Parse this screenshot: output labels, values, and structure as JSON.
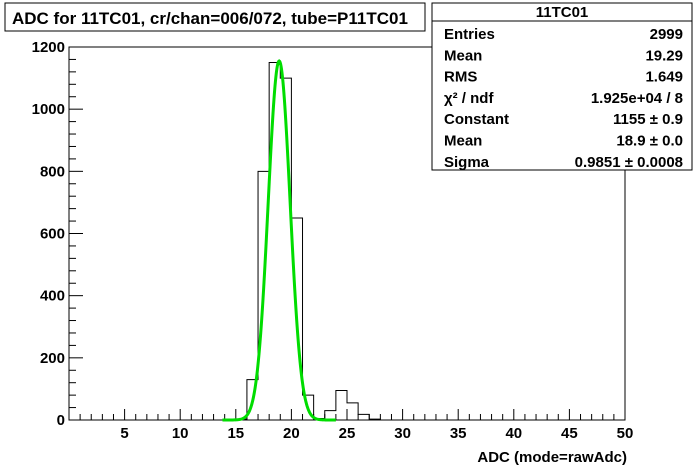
{
  "chart_data": {
    "type": "histogram",
    "title": "ADC for 11TC01,  cr/chan=006/072,  tube=P11TC01",
    "xlabel": "ADC (mode=rawAdc)",
    "ylabel": "",
    "xlim": [
      0,
      50
    ],
    "ylim": [
      0,
      1200
    ],
    "x_ticks": [
      5,
      10,
      15,
      20,
      25,
      30,
      35,
      40,
      45,
      50
    ],
    "y_ticks": [
      0,
      200,
      400,
      600,
      800,
      1000,
      1200
    ],
    "histogram": {
      "color": "#000000",
      "bins": [
        {
          "lo": 14,
          "hi": 15,
          "value": 0
        },
        {
          "lo": 15,
          "hi": 16,
          "value": 3
        },
        {
          "lo": 16,
          "hi": 17,
          "value": 130
        },
        {
          "lo": 17,
          "hi": 18,
          "value": 800
        },
        {
          "lo": 18,
          "hi": 19,
          "value": 1150
        },
        {
          "lo": 19,
          "hi": 20,
          "value": 1100
        },
        {
          "lo": 20,
          "hi": 21,
          "value": 650
        },
        {
          "lo": 21,
          "hi": 22,
          "value": 80
        },
        {
          "lo": 22,
          "hi": 23,
          "value": 5
        },
        {
          "lo": 23,
          "hi": 24,
          "value": 30
        },
        {
          "lo": 24,
          "hi": 25,
          "value": 95
        },
        {
          "lo": 25,
          "hi": 26,
          "value": 55
        },
        {
          "lo": 26,
          "hi": 27,
          "value": 18
        },
        {
          "lo": 27,
          "hi": 28,
          "value": 3
        }
      ]
    },
    "fit": {
      "function": "gaus",
      "color": "#00dd00",
      "constant": 1155,
      "mean": 18.9,
      "sigma": 0.9851,
      "x_range": [
        13.8,
        24.0
      ]
    },
    "stats_box": {
      "title": "11TC01",
      "rows": [
        {
          "label": "Entries",
          "value": "2999"
        },
        {
          "label": "Mean",
          "value": "19.29"
        },
        {
          "label": "RMS",
          "value": "1.649"
        },
        {
          "label": "χ² / ndf",
          "value": "1.925e+04 / 8"
        },
        {
          "label": "Constant",
          "value": "1155 ± 0.9"
        },
        {
          "label": "Mean",
          "value": "18.9 ± 0.0"
        },
        {
          "label": "Sigma",
          "value": "0.9851 ± 0.0008"
        }
      ]
    }
  }
}
